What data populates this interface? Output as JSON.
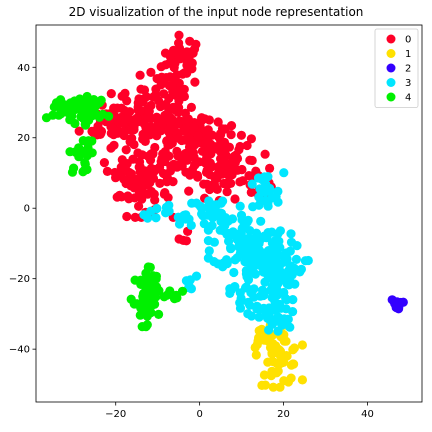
{
  "chart_data": {
    "type": "scatter",
    "title": "2D visualization of the input node representation",
    "xlabel": "",
    "ylabel": "",
    "xlim": [
      -39,
      53
    ],
    "ylim": [
      -55,
      52
    ],
    "xticks": [
      -20,
      0,
      20,
      40
    ],
    "yticks": [
      -40,
      -20,
      0,
      20,
      40
    ],
    "xtick_labels": [
      "−20",
      "0",
      "20",
      "40"
    ],
    "ytick_labels": [
      "−40",
      "−20",
      "0",
      "20",
      "40"
    ],
    "grid": false,
    "legend": {
      "placement": "top-right"
    },
    "series": [
      {
        "name": "0",
        "color": "#ff0028",
        "clusters": [
          {
            "center": [
              -4,
              42
            ],
            "spread": [
              2.5,
              3.5
            ],
            "count": 35
          },
          {
            "center": [
              -8,
              34
            ],
            "spread": [
              3.0,
              3.0
            ],
            "count": 30
          },
          {
            "center": [
              -14,
              26
            ],
            "spread": [
              6.0,
              3.0
            ],
            "count": 70
          },
          {
            "center": [
              -20,
              24
            ],
            "spread": [
              4.0,
              2.5
            ],
            "count": 40
          },
          {
            "center": [
              -6,
              22
            ],
            "spread": [
              5.0,
              3.0
            ],
            "count": 60
          },
          {
            "center": [
              -15,
              12
            ],
            "spread": [
              3.5,
              4.0
            ],
            "count": 45
          },
          {
            "center": [
              -14,
              4
            ],
            "spread": [
              3.5,
              3.0
            ],
            "count": 35
          },
          {
            "center": [
              -6,
              12
            ],
            "spread": [
              4.0,
              4.0
            ],
            "count": 45
          },
          {
            "center": [
              2,
              18
            ],
            "spread": [
              3.5,
              3.5
            ],
            "count": 40
          },
          {
            "center": [
              4,
              8
            ],
            "spread": [
              3.0,
              3.5
            ],
            "count": 35
          },
          {
            "center": [
              9,
              13
            ],
            "spread": [
              3.0,
              3.5
            ],
            "count": 35
          },
          {
            "center": [
              14,
              8
            ],
            "spread": [
              2.0,
              2.5
            ],
            "count": 15
          },
          {
            "center": [
              -3,
              -8
            ],
            "spread": [
              1.0,
              1.0
            ],
            "count": 4
          }
        ]
      },
      {
        "name": "1",
        "color": "#ffe100",
        "clusters": [
          {
            "center": [
              19,
              -42
            ],
            "spread": [
              2.5,
              4.0
            ],
            "count": 55
          },
          {
            "center": [
              15,
              -37
            ],
            "spread": [
              1.5,
              1.5
            ],
            "count": 12
          }
        ]
      },
      {
        "name": "2",
        "color": "#3300ff",
        "clusters": [
          {
            "center": [
              47,
              -27
            ],
            "spread": [
              0.7,
              0.7
            ],
            "count": 10
          }
        ]
      },
      {
        "name": "3",
        "color": "#00e6ff",
        "clusters": [
          {
            "center": [
              15,
              4
            ],
            "spread": [
              2.5,
              3.0
            ],
            "count": 25
          },
          {
            "center": [
              4,
              -2
            ],
            "spread": [
              3.5,
              3.0
            ],
            "count": 45
          },
          {
            "center": [
              12,
              -10
            ],
            "spread": [
              4.5,
              3.5
            ],
            "count": 85
          },
          {
            "center": [
              16,
              -16
            ],
            "spread": [
              4.5,
              3.0
            ],
            "count": 65
          },
          {
            "center": [
              14,
              -24
            ],
            "spread": [
              3.5,
              3.0
            ],
            "count": 45
          },
          {
            "center": [
              18,
              -31
            ],
            "spread": [
              3.0,
              2.5
            ],
            "count": 35
          },
          {
            "center": [
              -6,
              -3
            ],
            "spread": [
              2.0,
              2.0
            ],
            "count": 10
          },
          {
            "center": [
              -2,
              -22
            ],
            "spread": [
              1.5,
              1.5
            ],
            "count": 6
          },
          {
            "center": [
              -12,
              -2
            ],
            "spread": [
              1.0,
              1.0
            ],
            "count": 3
          }
        ]
      },
      {
        "name": "4",
        "color": "#00f000",
        "clusters": [
          {
            "center": [
              -31,
              28
            ],
            "spread": [
              2.5,
              1.8
            ],
            "count": 40
          },
          {
            "center": [
              -26,
              28
            ],
            "spread": [
              2.0,
              2.0
            ],
            "count": 25
          },
          {
            "center": [
              -28,
              15
            ],
            "spread": [
              1.5,
              2.5
            ],
            "count": 20
          },
          {
            "center": [
              -13,
              -27
            ],
            "spread": [
              1.5,
              3.0
            ],
            "count": 45
          },
          {
            "center": [
              -12,
              -20
            ],
            "spread": [
              1.0,
              2.0
            ],
            "count": 15
          },
          {
            "center": [
              -7,
              -25
            ],
            "spread": [
              2.5,
              1.0
            ],
            "count": 10
          }
        ]
      }
    ]
  }
}
